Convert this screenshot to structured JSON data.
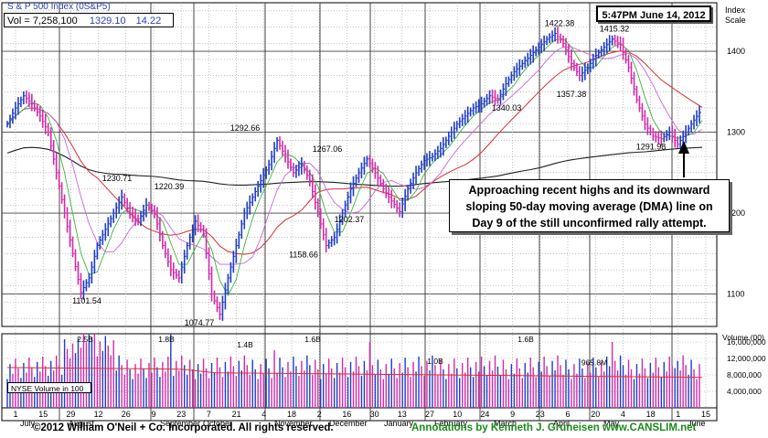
{
  "header": {
    "title": "S & P 500 Index   (0S&P5)",
    "volume": "Vol = 7,258,100",
    "close": "1329.10",
    "change": "14.22",
    "timestamp": "5:47PM June 14, 2012"
  },
  "annotation_box": {
    "lines": [
      "Approaching recent highs and its downward",
      "sloping 50-day moving average (DMA) line on",
      "Day 9 of the still unconfirmed rally attempt."
    ]
  },
  "volume_panel": {
    "legend_label": "NYSE  Volume in 100"
  },
  "footer": {
    "copyright": "©2012 William O'Neil + Co. Incorporated. All rights reserved.",
    "annotations": "Annotations by Kenneth J. Gruneisen www.CANSLIM.net"
  },
  "colors": {
    "price_up": "#1e3cc8",
    "price_down": "#d22aa8",
    "ma50": "#d83030",
    "ma200": "#202020",
    "ma10": "#3cb43c",
    "ma21": "#c864dc",
    "volume_avg": "#d83030",
    "footer_green": "#1a8a1a"
  },
  "chart_data": {
    "type": "line",
    "series": [
      {
        "values": [
          1310,
          1330,
          1345,
          1335,
          1320,
          1300,
          1250,
          1200,
          1150,
          1102,
          1120,
          1160,
          1180,
          1200,
          1220,
          1200,
          1190,
          1210,
          1200,
          1160,
          1130,
          1120,
          1160,
          1190,
          1175,
          1100,
          1075,
          1120,
          1160,
          1200,
          1220,
          1240,
          1260,
          1290,
          1270,
          1250,
          1260,
          1240,
          1200,
          1160,
          1170,
          1200,
          1230,
          1250,
          1267,
          1250,
          1230,
          1215,
          1202,
          1230,
          1250,
          1265,
          1270,
          1280,
          1295,
          1310,
          1320,
          1330,
          1335,
          1345,
          1340,
          1360,
          1375,
          1385,
          1395,
          1405,
          1415,
          1422,
          1410,
          1385,
          1370,
          1380,
          1395,
          1405,
          1415,
          1408,
          1380,
          1340,
          1310,
          1295,
          1292,
          1300,
          1285,
          1300,
          1315,
          1329
        ]
      }
    ],
    "y_axis_label": "Index Scale",
    "y_ticks": [
      1100,
      1200,
      1300,
      1400
    ],
    "ylim": [
      1060,
      1460
    ],
    "annotations": [
      {
        "label": "1101.54",
        "value": 1101.54
      },
      {
        "label": "1230.71",
        "value": 1230.71
      },
      {
        "label": "1220.39",
        "value": 1220.39
      },
      {
        "label": "1074.77",
        "value": 1074.77
      },
      {
        "label": "1292.66",
        "value": 1292.66
      },
      {
        "label": "1158.66",
        "value": 1158.66
      },
      {
        "label": "1267.06",
        "value": 1267.06
      },
      {
        "label": "1202.37",
        "value": 1202.37
      },
      {
        "label": "1340.03",
        "value": 1340.03
      },
      {
        "label": "1422.38",
        "value": 1422.38
      },
      {
        "label": "1357.38",
        "value": 1357.38
      },
      {
        "label": "1415.32",
        "value": 1415.32
      },
      {
        "label": "1291.98",
        "value": 1291.98
      }
    ],
    "volume": {
      "axis_label": "Volume (00)",
      "ticks": [
        "16,000,000",
        "12,000,000",
        "8,000,000",
        "4,000,000"
      ],
      "tick_values": [
        16000000,
        12000000,
        8000000,
        4000000
      ],
      "labels": [
        {
          "label": "2.5B",
          "value": 25000000
        },
        {
          "label": "1.8B",
          "value": 18000000
        },
        {
          "label": "1.4B",
          "value": 14000000
        },
        {
          "label": "1.6B",
          "value": 16000000
        },
        {
          "label": "1.0B",
          "value": 10000000
        },
        {
          "label": "1.6B",
          "value": 16000000
        },
        {
          "label": "965.8M",
          "value": 9658000
        }
      ]
    },
    "x_day_labels": [
      "1",
      "15",
      "29",
      "12",
      "26",
      "9",
      "23",
      "7",
      "21",
      "4",
      "18",
      "2",
      "16",
      "30",
      "13",
      "27",
      "10",
      "24",
      "9",
      "23",
      "6",
      "20",
      "4",
      "18",
      "1",
      "15"
    ],
    "x_month_labels": [
      "July",
      "August",
      "September",
      "October",
      "November",
      "December",
      "January",
      "February",
      "March",
      "April",
      "May",
      "June"
    ]
  }
}
